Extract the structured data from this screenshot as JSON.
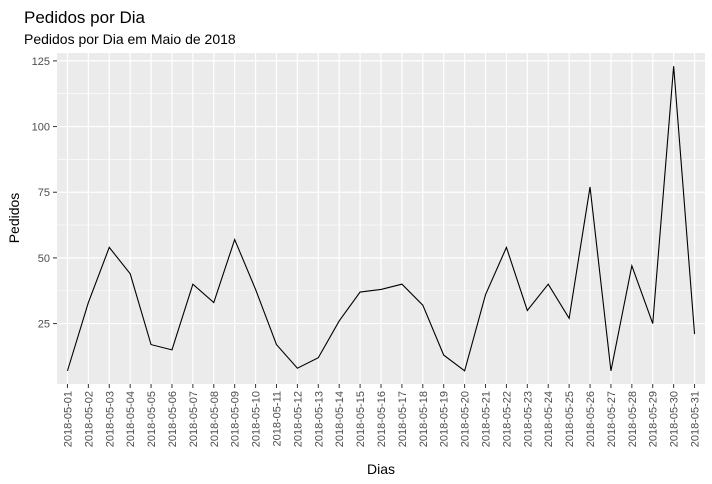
{
  "chart_data": {
    "type": "line",
    "title": "Pedidos por Dia",
    "subtitle": "Pedidos por Dia em Maio de 2018",
    "xlabel": "Dias",
    "ylabel": "Pedidos",
    "x": [
      "2018-05-01",
      "2018-05-02",
      "2018-05-03",
      "2018-05-04",
      "2018-05-05",
      "2018-05-06",
      "2018-05-07",
      "2018-05-08",
      "2018-05-09",
      "2018-05-10",
      "2018-05-11",
      "2018-05-12",
      "2018-05-13",
      "2018-05-14",
      "2018-05-15",
      "2018-05-16",
      "2018-05-17",
      "2018-05-18",
      "2018-05-19",
      "2018-05-20",
      "2018-05-21",
      "2018-05-22",
      "2018-05-23",
      "2018-05-24",
      "2018-05-25",
      "2018-05-26",
      "2018-05-27",
      "2018-05-28",
      "2018-05-29",
      "2018-05-30",
      "2018-05-31"
    ],
    "values": [
      7,
      33,
      54,
      44,
      17,
      15,
      40,
      33,
      57,
      38,
      17,
      8,
      12,
      26,
      37,
      38,
      40,
      32,
      13,
      7,
      36,
      54,
      30,
      40,
      27,
      77,
      7,
      47,
      25,
      123,
      21
    ],
    "yticks": [
      25,
      50,
      75,
      100,
      125
    ],
    "ylim": [
      2,
      128
    ],
    "grid": true,
    "line_color": "#000000",
    "panel_color": "#ebebeb",
    "grid_color": "#ffffff"
  }
}
